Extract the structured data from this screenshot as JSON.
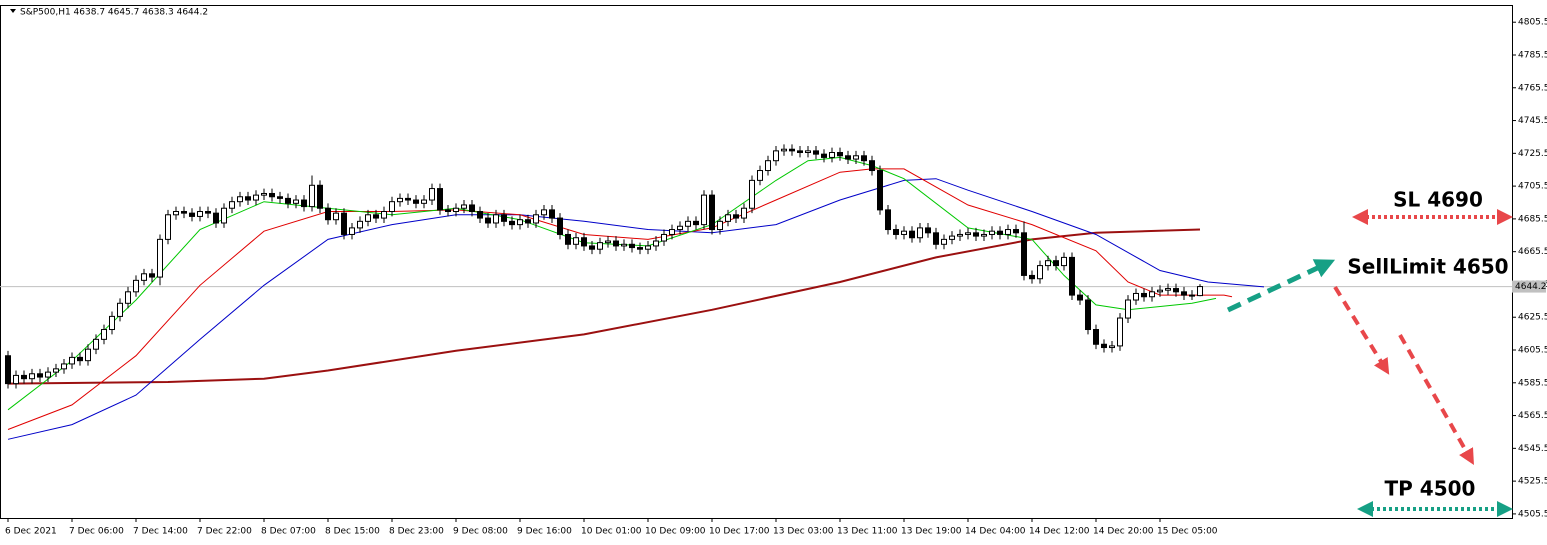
{
  "chart_data": {
    "type": "candlestick",
    "title": "S&P500,H1  4638.7 4645.7 4638.3 4644.2",
    "xlim": [
      -1,
      188
    ],
    "ylim": [
      4503,
      4816
    ],
    "yticks": [
      4505.5,
      4525.5,
      4545.5,
      4565.5,
      4585.5,
      4605.5,
      4625.5,
      4645.5,
      4665.5,
      4685.5,
      4705.5,
      4725.5,
      4745.5,
      4765.5,
      4785.5,
      4805.5
    ],
    "xticks": [
      {
        "value": 0,
        "label": "6 Dec 2021"
      },
      {
        "value": 8,
        "label": "7 Dec 06:00"
      },
      {
        "value": 16,
        "label": "7 Dec 14:00"
      },
      {
        "value": 24,
        "label": "7 Dec 22:00"
      },
      {
        "value": 32,
        "label": "8 Dec 07:00"
      },
      {
        "value": 40,
        "label": "8 Dec 15:00"
      },
      {
        "value": 48,
        "label": "8 Dec 23:00"
      },
      {
        "value": 56,
        "label": "9 Dec 08:00"
      },
      {
        "value": 64,
        "label": "9 Dec 16:00"
      },
      {
        "value": 72,
        "label": "10 Dec 01:00"
      },
      {
        "value": 80,
        "label": "10 Dec 09:00"
      },
      {
        "value": 88,
        "label": "10 Dec 17:00"
      },
      {
        "value": 96,
        "label": "13 Dec 03:00"
      },
      {
        "value": 104,
        "label": "13 Dec 11:00"
      },
      {
        "value": 112,
        "label": "13 Dec 19:00"
      },
      {
        "value": 120,
        "label": "14 Dec 04:00"
      },
      {
        "value": 128,
        "label": "14 Dec 12:00"
      },
      {
        "value": 136,
        "label": "14 Dec 20:00"
      },
      {
        "value": 144,
        "label": "15 Dec 05:00"
      }
    ],
    "last_price": 4644.2,
    "candles": {
      "open": [
        4602,
        4585,
        4590,
        4588,
        4591,
        4589,
        4592,
        4594,
        4597,
        4601,
        4599,
        4606,
        4612,
        4618,
        4626,
        4634,
        4641,
        4648,
        4652,
        4650,
        4673,
        4688,
        4690,
        4689,
        4687,
        4690,
        4689,
        4683,
        4692,
        4696,
        4699,
        4697,
        4700,
        4701,
        4699,
        4698,
        4695,
        4697,
        4693,
        4706,
        4692,
        4685,
        4689,
        4676,
        4680,
        4684,
        4688,
        4686,
        4690,
        4696,
        4698,
        4697,
        4695,
        4697,
        4704,
        4691,
        4690,
        4692,
        4694,
        4690,
        4686,
        4683,
        4688,
        4684,
        4682,
        4685,
        4683,
        4688,
        4691,
        4686,
        4676,
        4670,
        4674,
        4669,
        4667,
        4671,
        4672,
        4669,
        4670,
        4668,
        4667,
        4669,
        4672,
        4676,
        4679,
        4681,
        4684,
        4682,
        4700,
        4679,
        4684,
        4688,
        4686,
        4692,
        4709,
        4715,
        4721,
        4727,
        4728,
        4727,
        4726,
        4727,
        4725,
        4723,
        4726,
        4724,
        4722,
        4724,
        4721,
        4715,
        4691,
        4679,
        4676,
        4678,
        4674,
        4680,
        4677,
        4670,
        4673,
        4675,
        4676,
        4677,
        4675,
        4676,
        4678,
        4676,
        4679,
        4677,
        4651,
        4649,
        4657,
        4660,
        4657,
        4662,
        4639,
        4636,
        4618,
        4609,
        4607,
        4608,
        4625,
        4636,
        4640,
        4638,
        4641,
        4642,
        4643,
        4641,
        4639,
        4638.7
      ],
      "high": [
        4605,
        4593,
        4593,
        4594,
        4594,
        4595,
        4597,
        4600,
        4604,
        4604,
        4609,
        4615,
        4621,
        4629,
        4637,
        4644,
        4651,
        4655,
        4655,
        4676,
        4691,
        4693,
        4693,
        4692,
        4693,
        4693,
        4692,
        4695,
        4699,
        4702,
        4702,
        4703,
        4704,
        4704,
        4702,
        4701,
        4700,
        4700,
        4712,
        4709,
        4695,
        4692,
        4692,
        4683,
        4687,
        4691,
        4691,
        4693,
        4699,
        4701,
        4701,
        4700,
        4700,
        4707,
        4707,
        4694,
        4695,
        4697,
        4697,
        4693,
        4689,
        4691,
        4691,
        4687,
        4688,
        4688,
        4691,
        4694,
        4694,
        4689,
        4679,
        4677,
        4677,
        4672,
        4674,
        4675,
        4675,
        4673,
        4673,
        4671,
        4672,
        4675,
        4679,
        4682,
        4684,
        4687,
        4687,
        4703,
        4703,
        4687,
        4691,
        4691,
        4695,
        4712,
        4718,
        4724,
        4730,
        4731,
        4731,
        4730,
        4730,
        4730,
        4728,
        4729,
        4729,
        4727,
        4727,
        4727,
        4724,
        4718,
        4694,
        4682,
        4681,
        4681,
        4683,
        4683,
        4680,
        4676,
        4678,
        4679,
        4680,
        4680,
        4679,
        4681,
        4681,
        4682,
        4682,
        4684,
        4654,
        4660,
        4663,
        4663,
        4665,
        4665,
        4642,
        4639,
        4621,
        4612,
        4611,
        4628,
        4639,
        4643,
        4643,
        4644,
        4645,
        4646,
        4646,
        4644,
        4642,
        4645.7
      ],
      "low": [
        4582,
        4582,
        4585,
        4585,
        4586,
        4586,
        4589,
        4591,
        4594,
        4596,
        4596,
        4603,
        4609,
        4615,
        4623,
        4631,
        4638,
        4645,
        4647,
        4645,
        4670,
        4685,
        4686,
        4684,
        4684,
        4686,
        4680,
        4680,
        4689,
        4693,
        4694,
        4694,
        4697,
        4696,
        4695,
        4692,
        4692,
        4690,
        4690,
        4689,
        4682,
        4682,
        4673,
        4673,
        4677,
        4681,
        4683,
        4683,
        4687,
        4693,
        4694,
        4692,
        4692,
        4694,
        4688,
        4687,
        4687,
        4689,
        4687,
        4683,
        4680,
        4680,
        4681,
        4679,
        4679,
        4680,
        4680,
        4685,
        4683,
        4673,
        4667,
        4667,
        4666,
        4664,
        4664,
        4668,
        4666,
        4666,
        4665,
        4664,
        4664,
        4666,
        4669,
        4673,
        4676,
        4678,
        4679,
        4679,
        4676,
        4676,
        4681,
        4683,
        4683,
        4689,
        4706,
        4712,
        4718,
        4724,
        4724,
        4723,
        4723,
        4722,
        4720,
        4720,
        4721,
        4719,
        4719,
        4718,
        4712,
        4688,
        4676,
        4673,
        4673,
        4671,
        4671,
        4674,
        4667,
        4667,
        4670,
        4672,
        4673,
        4672,
        4672,
        4673,
        4673,
        4673,
        4674,
        4648,
        4646,
        4646,
        4654,
        4654,
        4654,
        4636,
        4633,
        4615,
        4606,
        4604,
        4604,
        4605,
        4622,
        4633,
        4635,
        4635,
        4638,
        4639,
        4638,
        4636,
        4636,
        4638.3
      ],
      "close": [
        4585,
        4590,
        4588,
        4591,
        4589,
        4592,
        4594,
        4597,
        4601,
        4599,
        4606,
        4612,
        4618,
        4626,
        4634,
        4641,
        4648,
        4652,
        4650,
        4673,
        4688,
        4690,
        4689,
        4687,
        4690,
        4689,
        4683,
        4692,
        4696,
        4699,
        4697,
        4700,
        4701,
        4699,
        4698,
        4695,
        4697,
        4693,
        4706,
        4692,
        4685,
        4689,
        4676,
        4680,
        4684,
        4688,
        4686,
        4690,
        4696,
        4698,
        4697,
        4695,
        4697,
        4704,
        4691,
        4690,
        4692,
        4694,
        4690,
        4686,
        4683,
        4688,
        4684,
        4682,
        4685,
        4683,
        4688,
        4691,
        4686,
        4676,
        4670,
        4674,
        4669,
        4667,
        4671,
        4672,
        4669,
        4670,
        4668,
        4667,
        4669,
        4672,
        4676,
        4679,
        4681,
        4684,
        4682,
        4700,
        4679,
        4684,
        4688,
        4686,
        4692,
        4709,
        4715,
        4721,
        4727,
        4728,
        4727,
        4726,
        4727,
        4725,
        4723,
        4726,
        4724,
        4722,
        4724,
        4721,
        4715,
        4691,
        4679,
        4676,
        4678,
        4674,
        4680,
        4677,
        4670,
        4673,
        4675,
        4676,
        4677,
        4675,
        4676,
        4678,
        4676,
        4679,
        4677,
        4651,
        4649,
        4657,
        4660,
        4657,
        4662,
        4639,
        4636,
        4618,
        4609,
        4607,
        4608,
        4625,
        4636,
        4640,
        4638,
        4641,
        4642,
        4643,
        4641,
        4639,
        4638.7,
        4644.2
      ]
    },
    "series": [
      {
        "color": "#9b1010",
        "width": 2,
        "x": [
          0,
          20,
          32,
          40,
          56,
          72,
          88,
          104,
          116,
          128,
          136,
          149
        ],
        "values": [
          4585,
          4586,
          4588,
          4593,
          4605,
          4615,
          4630,
          4647,
          4662,
          4673,
          4677,
          4679
        ]
      },
      {
        "color": "#0000c8",
        "width": 1,
        "x": [
          0,
          8,
          16,
          24,
          32,
          40,
          48,
          56,
          64,
          72,
          80,
          88,
          96,
          104,
          112,
          116,
          120,
          128,
          136,
          144,
          150,
          157
        ],
        "values": [
          4551,
          4560,
          4578,
          4612,
          4645,
          4673,
          4682,
          4688,
          4688,
          4684,
          4679,
          4677,
          4682,
          4697,
          4709,
          4710,
          4703,
          4690,
          4676,
          4654,
          4647,
          4644
        ]
      },
      {
        "color": "#e00000",
        "width": 1,
        "x": [
          0,
          8,
          16,
          24,
          32,
          40,
          48,
          56,
          64,
          72,
          80,
          88,
          96,
          104,
          108,
          112,
          120,
          128,
          136,
          140,
          144,
          152,
          153
        ],
        "values": [
          4557,
          4572,
          4602,
          4645,
          4678,
          4690,
          4690,
          4691,
          4688,
          4676,
          4673,
          4680,
          4697,
          4714,
          4716,
          4716,
          4694,
          4682,
          4666,
          4647,
          4639,
          4639,
          4638
        ]
      },
      {
        "color": "#00c800",
        "width": 1,
        "x": [
          0,
          8,
          16,
          24,
          32,
          40,
          48,
          56,
          64,
          72,
          80,
          88,
          96,
          100,
          104,
          108,
          112,
          120,
          128,
          132,
          136,
          140,
          148,
          151
        ],
        "values": [
          4569,
          4599,
          4636,
          4679,
          4696,
          4692,
          4688,
          4692,
          4685,
          4671,
          4669,
          4682,
          4709,
          4721,
          4723,
          4718,
          4710,
          4680,
          4673,
          4651,
          4633,
          4630,
          4634,
          4637
        ]
      }
    ],
    "annotations": [
      "SL 4690",
      "SellLimit 4650",
      "TP 4500"
    ]
  }
}
